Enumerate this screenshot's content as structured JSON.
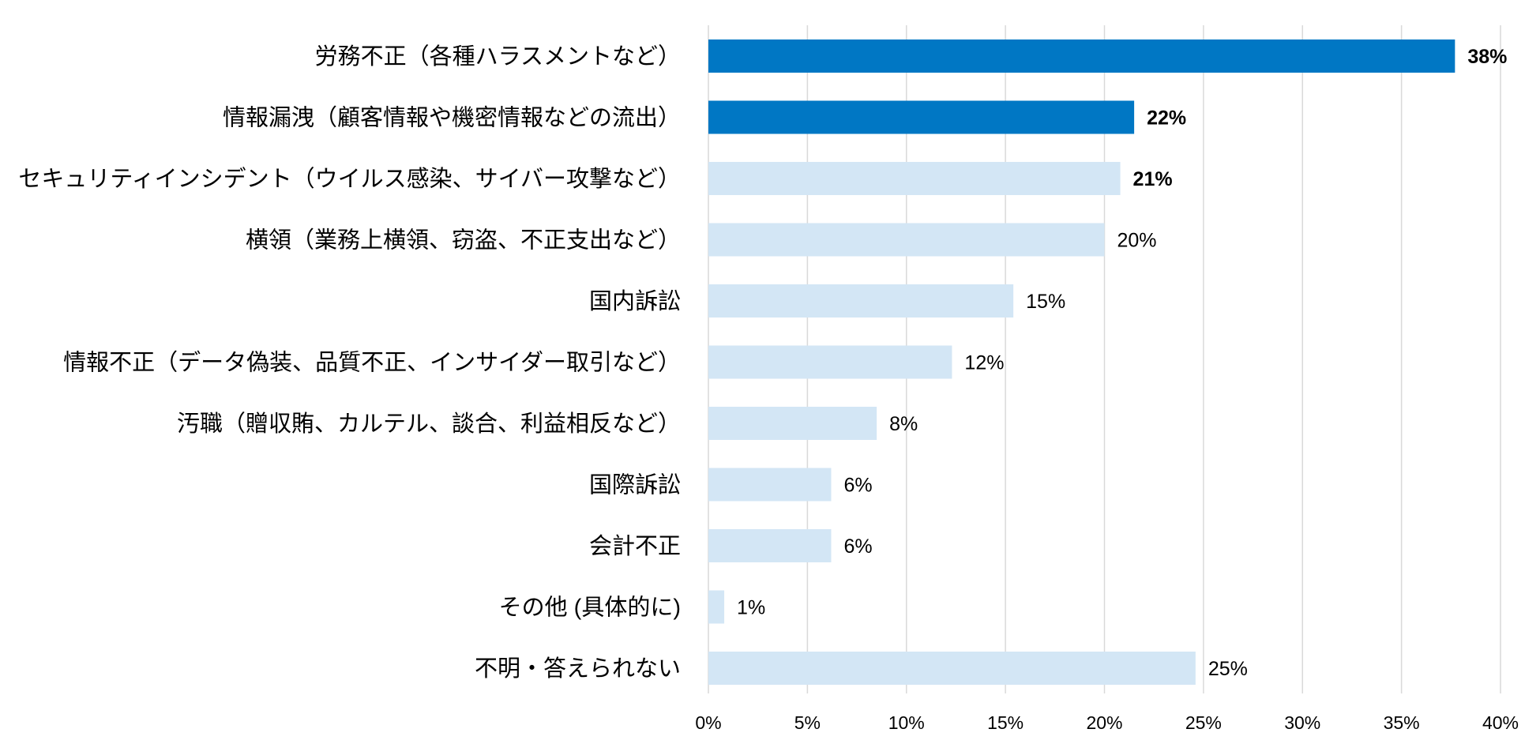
{
  "chart_data": {
    "type": "bar",
    "orientation": "horizontal",
    "title": "",
    "xlabel": "",
    "ylabel": "",
    "xlim": [
      0,
      40
    ],
    "grid": true,
    "legend": "none",
    "x_ticks": [
      "0%",
      "5%",
      "10%",
      "15%",
      "20%",
      "25%",
      "30%",
      "35%",
      "40%"
    ],
    "x_tick_values": [
      0,
      5,
      10,
      15,
      20,
      25,
      30,
      35,
      40
    ],
    "categories": [
      "労務不正（各種ハラスメントなど）",
      "情報漏洩（顧客情報や機密情報などの流出）",
      "セキュリティインシデント（ウイルス感染、サイバー攻撃など）",
      "横領（業務上横領、窃盗、不正支出など）",
      "国内訴訟",
      "情報不正（データ偽装、品質不正、インサイダー取引など）",
      "汚職（贈収賄、カルテル、談合、利益相反など）",
      "国際訴訟",
      "会計不正",
      "その他 (具体的に)",
      "不明・答えられない"
    ],
    "values": [
      37.7,
      21.5,
      20.8,
      20.0,
      15.4,
      12.3,
      8.5,
      6.2,
      6.2,
      0.8,
      24.6
    ],
    "data_labels": [
      "38%",
      "22%",
      "21%",
      "20%",
      "15%",
      "12%",
      "8%",
      "6%",
      "6%",
      "1%",
      "25%"
    ],
    "highlight": [
      true,
      true,
      false,
      false,
      false,
      false,
      false,
      false,
      false,
      false,
      false
    ],
    "bold_labels": [
      true,
      true,
      true,
      false,
      false,
      false,
      false,
      false,
      false,
      false,
      false
    ],
    "colors": {
      "highlight": "#0077C4",
      "normal": "#D3E6F5",
      "grid": "#D9D9D9",
      "text": "#000000"
    }
  }
}
